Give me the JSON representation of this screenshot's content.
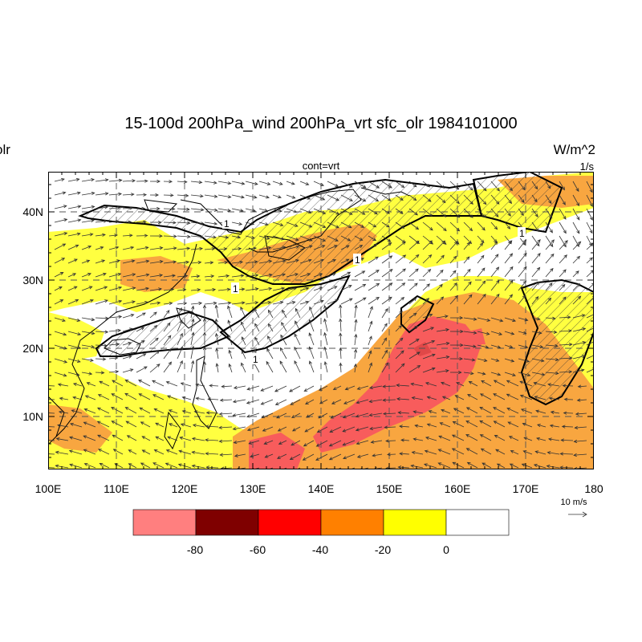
{
  "title": "15-100d 200hPa_wind 200hPa_vrt sfc_olr 1984101000",
  "left_label": "olr",
  "center_label": "cont=vrt",
  "right_units": "W/m^2",
  "right_units2": "1/s",
  "lat_labels": [
    "40N",
    "30N",
    "20N",
    "10N"
  ],
  "lon_labels": [
    "100E",
    "110E",
    "120E",
    "130E",
    "140E",
    "150E",
    "160E",
    "170E",
    "180"
  ],
  "vector_ref_label": "10 m/s",
  "contour_label": "1",
  "colorbar": {
    "colors": [
      "#ff7f7f",
      "#7f0000",
      "#ff0000",
      "#ff8000",
      "#ffff00",
      "#ffffff"
    ],
    "labels": [
      "-80",
      "-60",
      "-40",
      "-20",
      "0"
    ]
  },
  "map_colors": {
    "light": "#ffff40",
    "orange": "#f8a640",
    "red": "#f85c5c",
    "darkest": "#e04848"
  }
}
